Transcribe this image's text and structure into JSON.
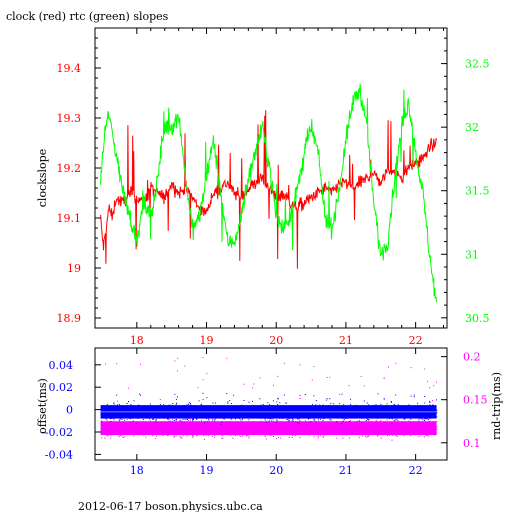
{
  "page": {
    "title": "clock (red) rtc (green) slopes",
    "footer": "2012-06-17 boson.physics.ubc.ca"
  },
  "colors": {
    "clock": "#ff0000",
    "rtc": "#00ff00",
    "offset": "#0000ff",
    "rndtrip": "#ff00ff",
    "bottom_axis_left": "#0000ff",
    "bottom_axis_right": "#ff00ff"
  },
  "chart_data": [
    {
      "type": "line",
      "title": "clock (red) rtc (green) slopes",
      "ylabel": "clockslope",
      "xlim": [
        17.4,
        22.45
      ],
      "ylim_left": [
        18.88,
        19.48
      ],
      "ylim_right": [
        30.42,
        32.78
      ],
      "x_ticks": [
        "18",
        "19",
        "20",
        "21",
        "22"
      ],
      "y_ticks_left": [
        "18.9",
        "19",
        "19.1",
        "19.2",
        "19.3",
        "19.4"
      ],
      "y_ticks_right": [
        "30.5",
        "31",
        "31.5",
        "32",
        "32.5"
      ],
      "grid": false,
      "series": [
        {
          "name": "clock",
          "axis": "left",
          "x": [
            17.48,
            17.52,
            17.56,
            17.6,
            17.65,
            17.7,
            17.8,
            17.9,
            18.0,
            18.1,
            18.2,
            18.3,
            18.4,
            18.5,
            18.6,
            18.7,
            18.8,
            18.9,
            19.0,
            19.1,
            19.2,
            19.3,
            19.4,
            19.5,
            19.6,
            19.7,
            19.8,
            19.9,
            20.0,
            20.1,
            20.2,
            20.3,
            20.4,
            20.5,
            20.6,
            20.7,
            20.8,
            20.9,
            21.0,
            21.1,
            21.2,
            21.3,
            21.4,
            21.5,
            21.6,
            21.7,
            21.8,
            21.9,
            22.0,
            22.1,
            22.2,
            22.3
          ],
          "y": [
            19.1,
            19.04,
            19.08,
            19.12,
            19.1,
            19.14,
            19.13,
            19.15,
            19.14,
            19.13,
            19.16,
            19.15,
            19.14,
            19.17,
            19.15,
            19.16,
            19.14,
            19.12,
            19.11,
            19.15,
            19.16,
            19.17,
            19.15,
            19.14,
            19.16,
            19.17,
            19.18,
            19.16,
            19.14,
            19.15,
            19.13,
            19.12,
            19.13,
            19.14,
            19.15,
            19.16,
            19.15,
            19.17,
            19.17,
            19.16,
            19.17,
            19.18,
            19.19,
            19.17,
            19.2,
            19.19,
            19.18,
            19.2,
            19.21,
            19.22,
            19.24,
            19.25
          ]
        },
        {
          "name": "rtc",
          "axis": "right",
          "x": [
            17.48,
            17.55,
            17.6,
            17.7,
            17.8,
            17.9,
            18.0,
            18.1,
            18.2,
            18.3,
            18.4,
            18.5,
            18.6,
            18.7,
            18.8,
            18.9,
            19.0,
            19.1,
            19.2,
            19.3,
            19.4,
            19.5,
            19.6,
            19.7,
            19.8,
            19.9,
            20.0,
            20.1,
            20.2,
            20.3,
            20.4,
            20.5,
            20.6,
            20.7,
            20.8,
            20.9,
            21.0,
            21.1,
            21.2,
            21.3,
            21.4,
            21.5,
            21.6,
            21.7,
            21.8,
            21.9,
            22.0,
            22.1,
            22.2,
            22.3
          ],
          "y": [
            31.6,
            32.0,
            32.1,
            31.8,
            31.5,
            31.3,
            31.1,
            31.4,
            31.3,
            31.6,
            32.0,
            32.0,
            32.1,
            31.6,
            31.2,
            31.3,
            31.6,
            31.9,
            31.5,
            31.1,
            31.1,
            31.3,
            31.6,
            31.8,
            32.0,
            31.7,
            31.3,
            31.2,
            31.3,
            31.5,
            31.8,
            32.0,
            31.8,
            31.3,
            31.2,
            31.5,
            31.9,
            32.2,
            32.3,
            32.0,
            31.4,
            31.0,
            31.1,
            31.6,
            32.0,
            32.2,
            31.8,
            31.5,
            31.0,
            30.6
          ]
        }
      ]
    },
    {
      "type": "scatter",
      "ylabel": "offset(ms)",
      "ylabel_right": "rnd-trip(ms)",
      "xlim": [
        17.4,
        22.45
      ],
      "ylim_left": [
        -0.045,
        0.055
      ],
      "ylim_right": [
        0.08,
        0.21
      ],
      "x_ticks": [
        "18",
        "19",
        "20",
        "21",
        "22"
      ],
      "y_ticks_left": [
        "-0.04",
        "-0.02",
        "0",
        "0.02",
        "0.04"
      ],
      "y_ticks_right": [
        "0.1",
        "0.15",
        "0.2"
      ],
      "series": [
        {
          "name": "offset",
          "axis": "left",
          "band_center": -0.002,
          "band_halfwidth": 0.006,
          "outlier_max": 0.015
        },
        {
          "name": "rnd-trip",
          "axis": "right",
          "band_center": 0.117,
          "band_halfwidth": 0.008,
          "outlier_max": 0.2
        }
      ]
    }
  ]
}
